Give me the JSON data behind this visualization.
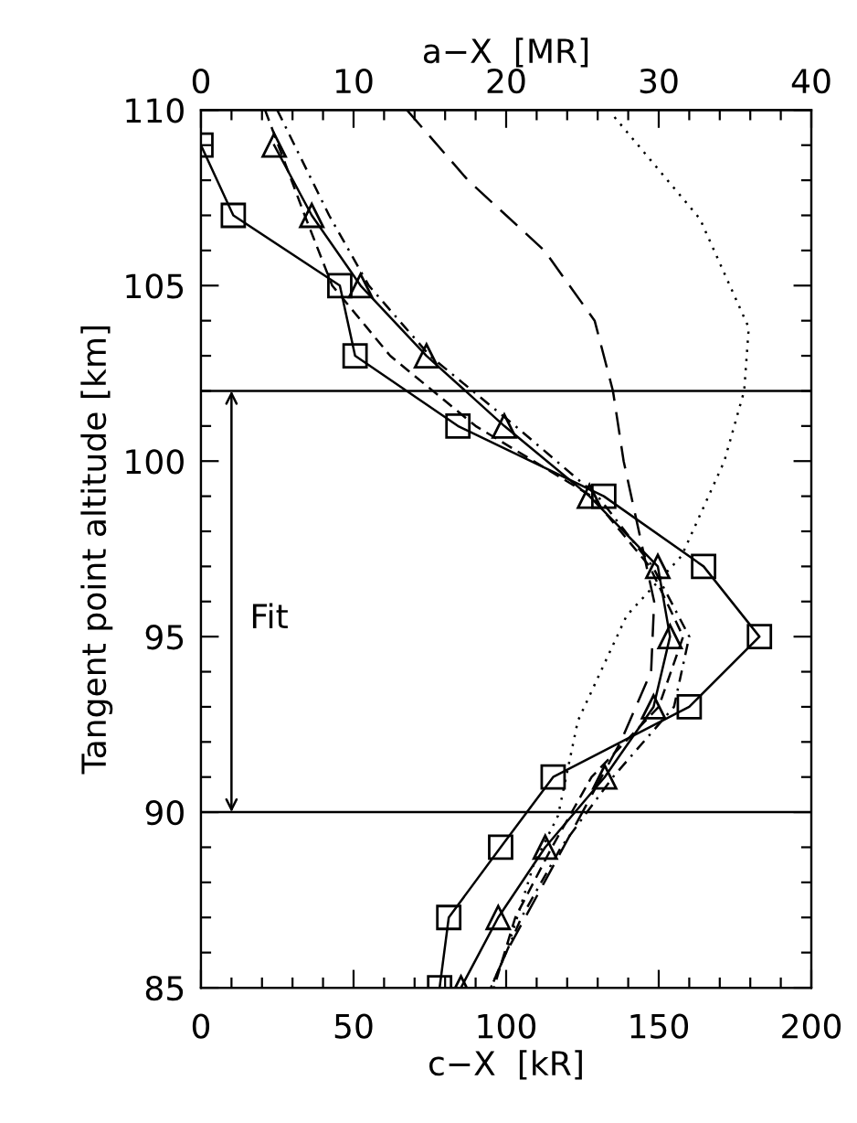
{
  "chart_data": {
    "type": "line",
    "xlabel": "c−X  [kR]",
    "x2label": "a−X  [MR]",
    "ylabel": "Tangent point altitude [km]",
    "xlim": [
      0,
      200
    ],
    "xticks": [
      0,
      50,
      100,
      150,
      200
    ],
    "x2lim": [
      0,
      40
    ],
    "x2ticks": [
      0,
      10,
      20,
      30,
      40
    ],
    "ylim": [
      85,
      110
    ],
    "yticks": [
      85,
      90,
      95,
      100,
      105,
      110
    ],
    "grid": false,
    "legend": false,
    "series": [
      {
        "color": "#000000",
        "marker": "square",
        "line_style": "solid",
        "x": [
          0,
          10.6,
          45.5,
          50.5,
          84.2,
          132,
          164.7,
          183,
          160,
          115.4,
          98.2,
          81.2,
          78.2
        ],
        "values": [
          109,
          107,
          105,
          103,
          101,
          99,
          97,
          95,
          93,
          91,
          89,
          87,
          85
        ]
      },
      {
        "color": "#000000",
        "marker": "triangle",
        "line_style": "solid",
        "x": [
          24,
          36.3,
          52.3,
          73.9,
          99.4,
          127.3,
          149.7,
          153.7,
          148.3,
          132.3,
          112.8,
          97.4,
          85.2
        ],
        "values": [
          109,
          107,
          105,
          103,
          101,
          99,
          97,
          95,
          93,
          91,
          89,
          87,
          85
        ]
      },
      {
        "color": "#000000",
        "marker": "none",
        "line_style": "dashed",
        "x": [
          21,
          34,
          43,
          62,
          90,
          128,
          147,
          158,
          150,
          128,
          115,
          103,
          96
        ],
        "values": [
          110,
          107,
          105,
          103,
          101,
          99,
          97,
          95,
          93,
          91,
          89,
          87,
          85
        ]
      },
      {
        "color": "#000000",
        "marker": "none",
        "line_style": "dashdot",
        "x": [
          25,
          42,
          55,
          75,
          103,
          130,
          148,
          160,
          155,
          135,
          118,
          105,
          95
        ],
        "values": [
          110,
          107,
          105,
          103,
          101,
          99,
          97,
          95,
          93,
          91,
          89,
          87,
          85
        ]
      },
      {
        "color": "#000000",
        "marker": "none",
        "line_style": "longdash",
        "axis": "x2",
        "x": [
          13.5,
          17.5,
          22.5,
          25.8,
          27.0,
          27.7,
          28.7,
          29.7,
          29.5,
          27.5,
          25.0,
          22.5,
          20.0,
          19.0
        ],
        "values": [
          110,
          108,
          106,
          104,
          102,
          100,
          98,
          96,
          94,
          92,
          90,
          88,
          86,
          85
        ]
      },
      {
        "color": "#000000",
        "marker": "none",
        "line_style": "dotted",
        "axis": "x2",
        "x": [
          27.1,
          32.7,
          35.9,
          35.6,
          34.3,
          31.5,
          27.9,
          24.7,
          23.4,
          21.8,
          20.0,
          19.0
        ],
        "values": [
          109.8,
          106.9,
          103.8,
          102,
          100,
          97.3,
          95.6,
          92.6,
          89.9,
          88.5,
          86,
          85
        ]
      }
    ],
    "ref_lines": [
      {
        "axis": "y",
        "value": 90,
        "color": "#000000"
      },
      {
        "axis": "y",
        "value": 102,
        "color": "#000000"
      }
    ],
    "annotations": [
      "Fit"
    ]
  }
}
